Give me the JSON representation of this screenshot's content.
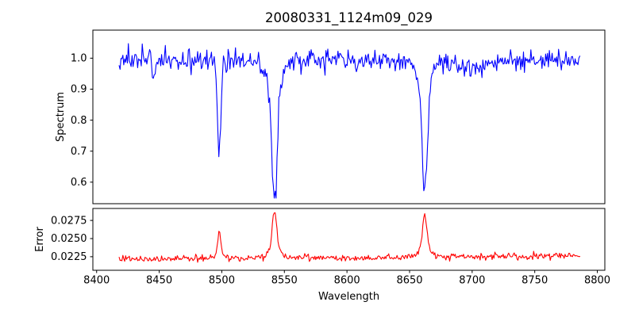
{
  "figure": {
    "background": "#ffffff"
  },
  "chart_data": {
    "type": "line",
    "title": "20080331_1124m09_029",
    "xlabel": "Wavelength",
    "grid": false,
    "legend": "none",
    "xlim": [
      8397,
      8806
    ],
    "x_start": 8418,
    "x_end": 8786,
    "num_points": 500,
    "noise_seed": 20080331,
    "xticks": {
      "values": [
        8400,
        8450,
        8500,
        8550,
        8600,
        8650,
        8700,
        8750,
        8800
      ],
      "labels": [
        "8400",
        "8450",
        "8500",
        "8550",
        "8600",
        "8650",
        "8700",
        "8750",
        "8800"
      ]
    },
    "subplots": [
      {
        "name": "spectrum",
        "ylabel": "Spectrum",
        "line_color": "#0000ff",
        "ylim": [
          0.5305,
          1.0905
        ],
        "yticks": {
          "values": [
            0.6,
            0.7,
            0.8,
            0.9,
            1.0
          ],
          "labels": [
            "0.6",
            "0.7",
            "0.8",
            "0.9",
            "1.0"
          ]
        },
        "baseline": 0.995,
        "noise_sigma": 0.017,
        "trend": 0,
        "features": [
          {
            "center": 8445.5,
            "amp": -0.07,
            "sigma": 1.0,
            "wing_amp": 0,
            "wing_sigma": 1
          },
          {
            "center": 8498.0,
            "amp": -0.3,
            "sigma": 1.3,
            "wing_amp": -0.02,
            "wing_sigma": 4.5
          },
          {
            "center": 8542.1,
            "amp": -0.38,
            "sigma": 2.2,
            "wing_amp": -0.07,
            "wing_sigma": 7
          },
          {
            "center": 8662.1,
            "amp": -0.36,
            "sigma": 2.2,
            "wing_amp": -0.06,
            "wing_sigma": 7
          },
          {
            "center": 8700.0,
            "amp": -0.03,
            "sigma": 12.0,
            "wing_amp": 0,
            "wing_sigma": 1
          }
        ]
      },
      {
        "name": "error",
        "ylabel": "Error",
        "line_color": "#ff0000",
        "ylim": [
          0.02063,
          0.02915
        ],
        "yticks": {
          "values": [
            0.0225,
            0.025,
            0.0275
          ],
          "labels": [
            "0.0225",
            "0.0250",
            "0.0275"
          ]
        },
        "baseline": 0.02225,
        "noise_sigma": 0.00023,
        "trend": 0.0004,
        "features": [
          {
            "center": 8498.0,
            "amp": 0.0038,
            "sigma": 1.2,
            "wing_amp": 0.0003,
            "wing_sigma": 4
          },
          {
            "center": 8542.1,
            "amp": 0.0057,
            "sigma": 1.8,
            "wing_amp": 0.0009,
            "wing_sigma": 6
          },
          {
            "center": 8662.1,
            "amp": 0.0051,
            "sigma": 1.8,
            "wing_amp": 0.0008,
            "wing_sigma": 6
          }
        ]
      }
    ]
  }
}
